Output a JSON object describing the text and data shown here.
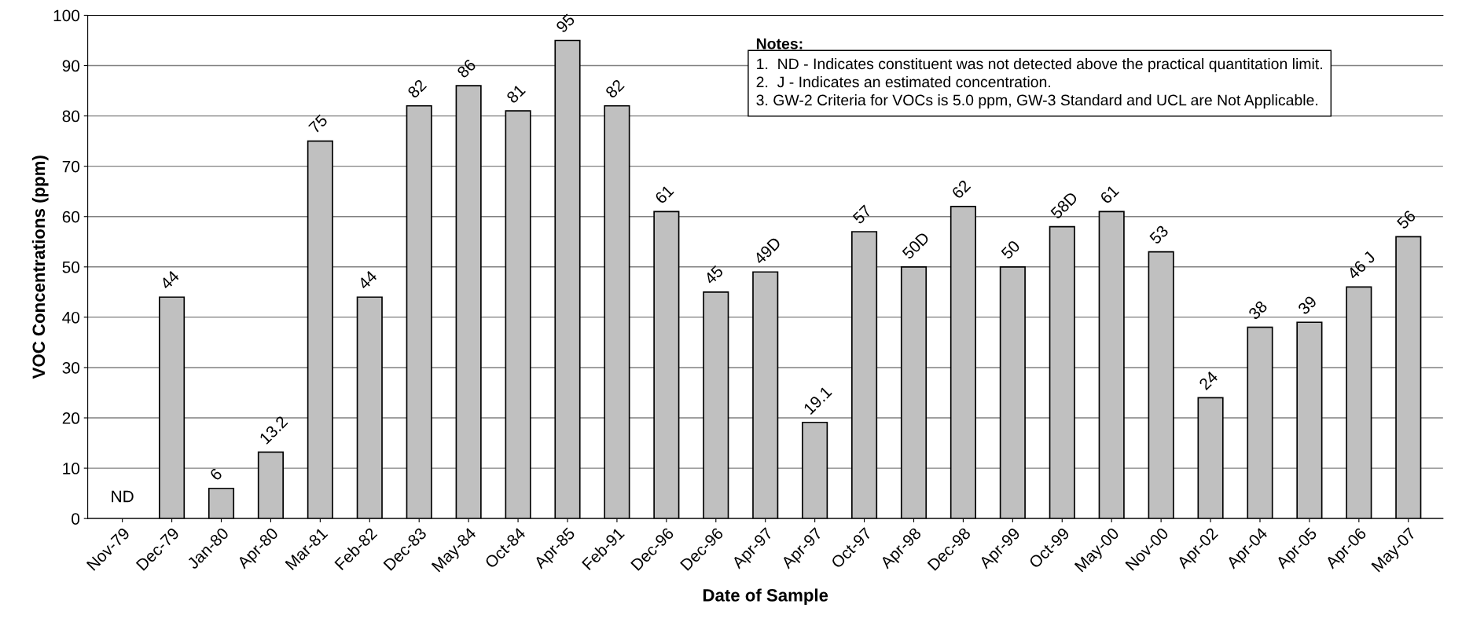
{
  "chart_data": {
    "type": "bar",
    "xlabel": "Date of Sample",
    "ylabel": "VOC Concentrations (ppm)",
    "categories": [
      "Nov-79",
      "Dec-79",
      "Jan-80",
      "Apr-80",
      "Mar-81",
      "Feb-82",
      "Dec-83",
      "May-84",
      "Oct-84",
      "Apr-85",
      "Feb-91",
      "Dec-96",
      "Dec-96",
      "Apr-97",
      "Apr-97",
      "Oct-97",
      "Apr-98",
      "Dec-98",
      "Apr-99",
      "Oct-99",
      "May-00",
      "Nov-00",
      "Apr-02",
      "Apr-04",
      "Apr-05",
      "Apr-06",
      "May-07"
    ],
    "values": [
      null,
      44,
      6,
      13.2,
      75,
      44,
      82,
      86,
      81,
      95,
      82,
      61,
      45,
      49,
      19.1,
      57,
      50,
      62,
      50,
      58,
      61,
      53,
      24,
      38,
      39,
      46,
      56
    ],
    "value_labels": [
      "ND",
      "44",
      "6",
      "13.2",
      "75",
      "44",
      "82",
      "86",
      "81",
      "95",
      "82",
      "61",
      "45",
      "49D",
      "19.1",
      "57",
      "50D",
      "62",
      "50",
      "58D",
      "61",
      "53",
      "24",
      "38",
      "39",
      "46 J",
      "56"
    ],
    "color": "#c0c0c0",
    "ylim": [
      0,
      100
    ],
    "yticks": [
      0,
      10,
      20,
      30,
      40,
      50,
      60,
      70,
      80,
      90,
      100
    ],
    "grid": "y",
    "annotations": [
      "Notes:",
      "1.  ND - Indicates constituent was not detected above the practical quantitation limit.",
      "2.  J - Indicates an estimated concentration.",
      "3. GW-2 Criteria for VOCs is 5.0 ppm, GW-3 Standard and UCL are Not Applicable."
    ]
  }
}
